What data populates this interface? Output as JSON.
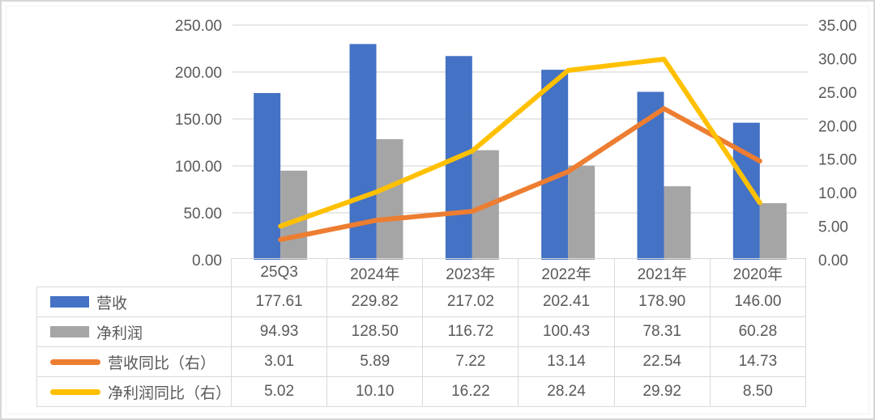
{
  "chart_data": {
    "type": "combo-bar-line",
    "categories": [
      "25Q3",
      "2024年",
      "2023年",
      "2022年",
      "2021年",
      "2020年"
    ],
    "bar_series": [
      {
        "name": "营收",
        "color": "#4472C4",
        "axis": "left",
        "values": [
          177.61,
          229.82,
          217.02,
          202.41,
          178.9,
          146.0
        ]
      },
      {
        "name": "净利润",
        "color": "#A5A5A5",
        "axis": "left",
        "values": [
          94.93,
          128.5,
          116.72,
          100.43,
          78.31,
          60.28
        ]
      }
    ],
    "line_series": [
      {
        "name": "营收同比（右）",
        "color": "#ED7D31",
        "axis": "right",
        "values": [
          3.01,
          5.89,
          7.22,
          13.14,
          22.54,
          14.73
        ]
      },
      {
        "name": "净利润同比（右）",
        "color": "#FFC000",
        "axis": "right",
        "values": [
          5.02,
          10.1,
          16.22,
          28.24,
          29.92,
          8.5
        ]
      }
    ],
    "left_axis": {
      "min": 0,
      "max": 250,
      "step": 50,
      "decimals": 2,
      "tick_labels": [
        "0.00",
        "50.00",
        "100.00",
        "150.00",
        "200.00",
        "250.00"
      ]
    },
    "right_axis": {
      "min": 0,
      "max": 35,
      "step": 5,
      "decimals": 2,
      "tick_labels": [
        "0.00",
        "5.00",
        "10.00",
        "15.00",
        "20.00",
        "25.00",
        "30.00",
        "35.00"
      ]
    },
    "grid": true,
    "legend_position": "table-left",
    "table_value_decimals": 2,
    "title": "",
    "xlabel": "",
    "ylabel": ""
  },
  "colors": {
    "grid_line": "#d9d9d9",
    "axis_text": "#595959",
    "table_border": "#d9d9d9",
    "table_text": "#595959"
  }
}
